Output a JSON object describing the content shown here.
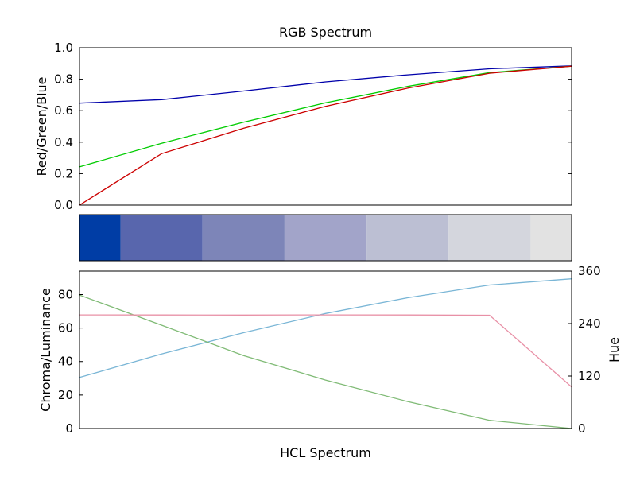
{
  "chart_data": [
    {
      "type": "line",
      "title": "RGB Spectrum",
      "xlabel": "",
      "ylabel": "Red/Green/Blue",
      "ylim": [
        0,
        1
      ],
      "yticks": [
        "0.0",
        "0.2",
        "0.4",
        "0.6",
        "0.8",
        "1.0"
      ],
      "x": [
        0,
        1,
        2,
        3,
        4,
        5,
        6
      ],
      "series": [
        {
          "color": "#0000aa",
          "values": [
            0.648,
            0.67,
            0.725,
            0.783,
            0.828,
            0.866,
            0.885
          ]
        },
        {
          "color": "#00cc00",
          "values": [
            0.243,
            0.393,
            0.527,
            0.65,
            0.754,
            0.842,
            0.883
          ]
        },
        {
          "color": "#cc0000",
          "values": [
            0.0,
            0.327,
            0.488,
            0.628,
            0.743,
            0.838,
            0.883
          ]
        }
      ],
      "grid": false
    },
    {
      "type": "heatmap",
      "swatches": [
        "#003da5",
        "#5866ad",
        "#7d85b8",
        "#a2a4c9",
        "#bcbfd3",
        "#d4d6dd",
        "#e2e2e2"
      ]
    },
    {
      "type": "line",
      "title": "",
      "xlabel": "HCL Spectrum",
      "ylabel": "Chroma/Luminance",
      "ylabel_right": "Hue",
      "ylim": [
        0,
        94
      ],
      "ylim_right": [
        0,
        360
      ],
      "yticks": [
        "0",
        "20",
        "40",
        "60",
        "80"
      ],
      "yticks_right": [
        "0",
        "120",
        "240",
        "360"
      ],
      "x": [
        0,
        1,
        2,
        3,
        4,
        5,
        6
      ],
      "series": [
        {
          "axis": "left",
          "color": "#7ab6d6",
          "values": [
            30.5,
            44.5,
            57.2,
            68.7,
            78.1,
            85.7,
            89.4
          ]
        },
        {
          "axis": "left",
          "color": "#80bb76",
          "values": [
            79.7,
            61.7,
            43.6,
            28.9,
            16.1,
            4.9,
            0.0
          ]
        },
        {
          "axis": "right",
          "color": "#e890a6",
          "values": [
            259.8,
            259.6,
            259.5,
            259.9,
            259.6,
            259.1,
            95.0
          ]
        }
      ],
      "grid": false
    }
  ]
}
